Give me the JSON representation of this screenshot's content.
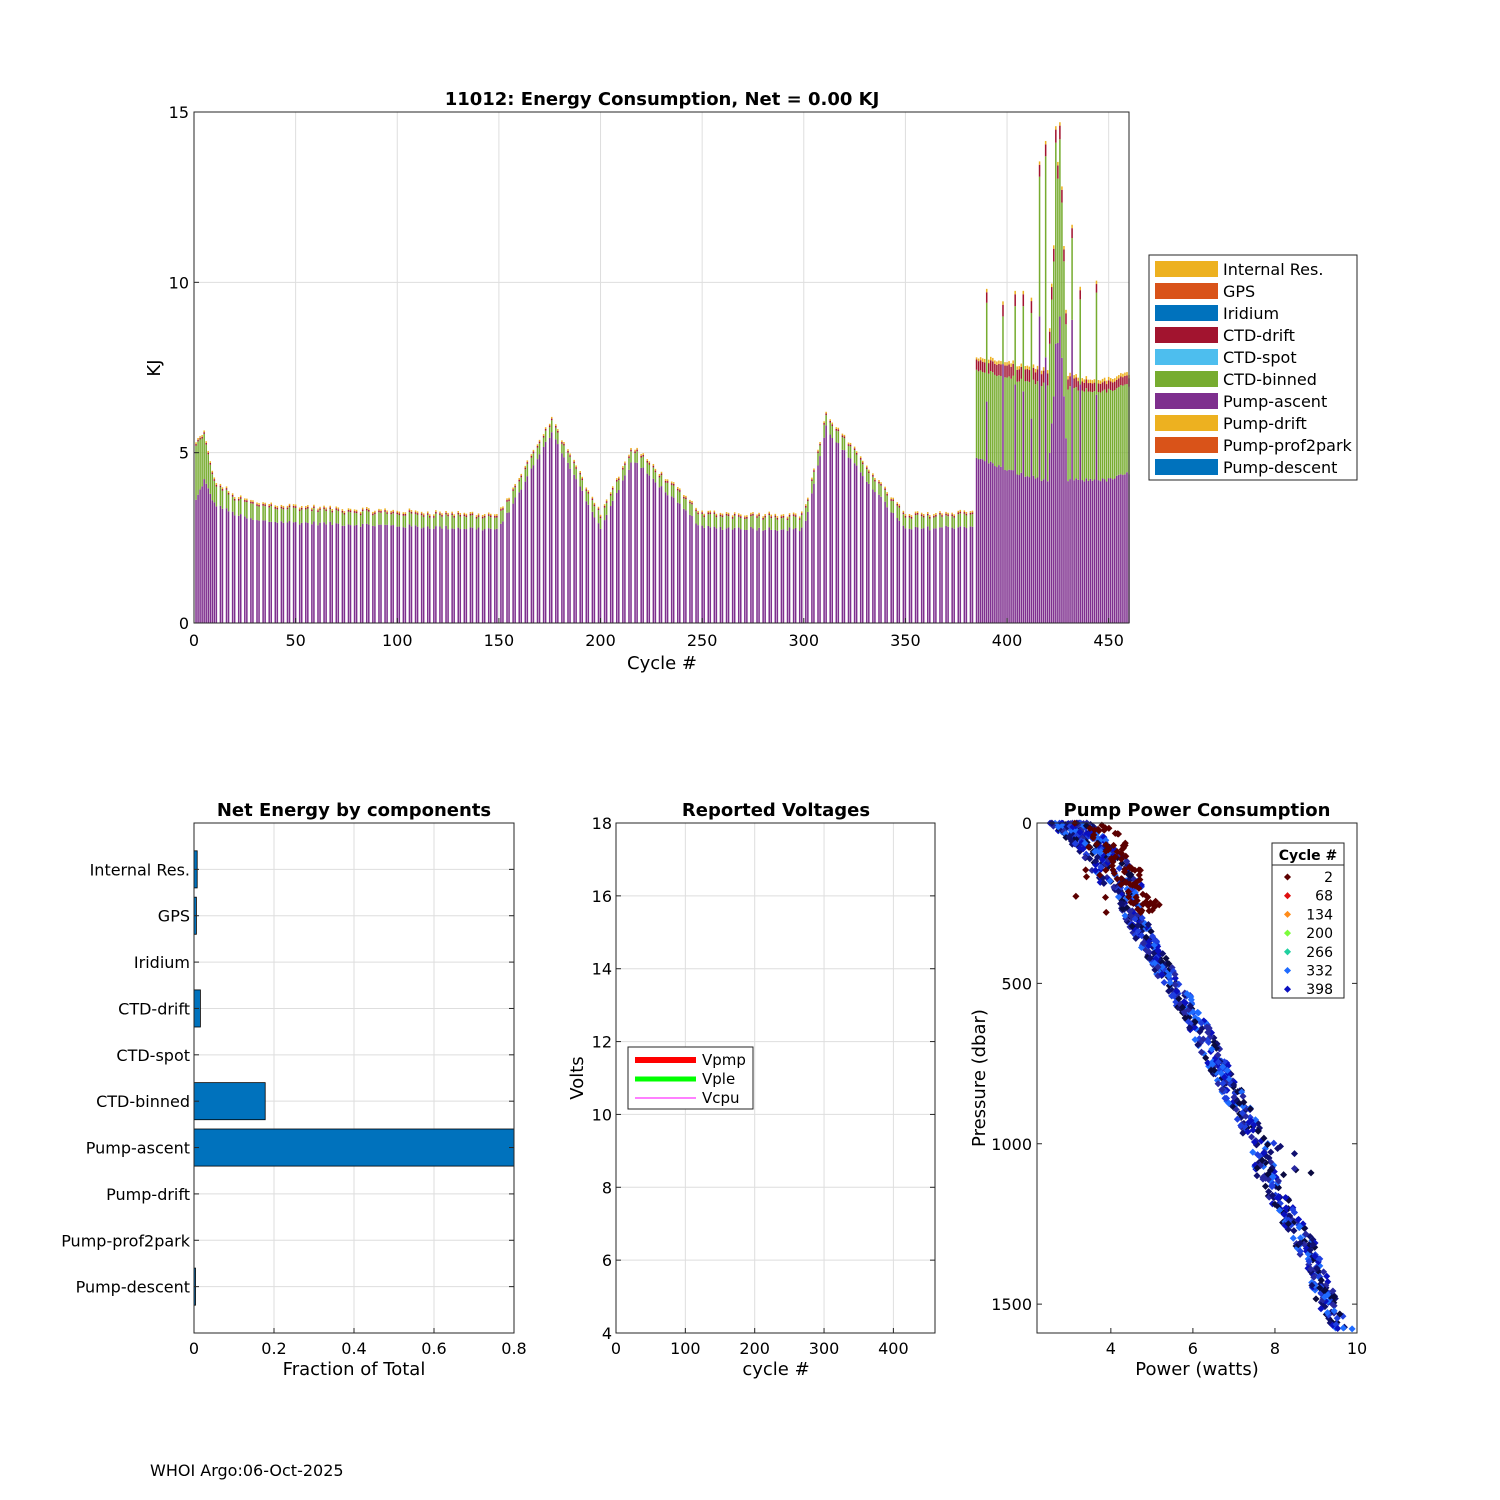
{
  "footer": "WHOI Argo:06-Oct-2025",
  "colors": {
    "internal_res": "#EDB120",
    "gps": "#D95319",
    "iridium": "#0072BD",
    "ctd_drift": "#A2142F",
    "ctd_spot": "#4DBEEE",
    "ctd_binned": "#77AC30",
    "pump_ascent": "#7E2F8E",
    "pump_drift": "#EDB120",
    "pump_prof2park": "#D95319",
    "pump_descent": "#0072BD",
    "net_bar": "#0072BD",
    "vpmp": "#FF0000",
    "vple": "#00FF00",
    "vcpu": "#FF00FF"
  },
  "chart_data": [
    {
      "type": "bar",
      "stacked": true,
      "title": "11012: Energy Consumption,  Net =   0.00 KJ",
      "xlabel": "Cycle #",
      "ylabel": "KJ",
      "xlim": [
        0,
        460
      ],
      "ylim": [
        0,
        15
      ],
      "xticks": [
        "0",
        "50",
        "100",
        "150",
        "200",
        "250",
        "300",
        "350",
        "400",
        "450"
      ],
      "yticks": [
        "0",
        "5",
        "10",
        "15"
      ],
      "grid": true,
      "legend_position": "outside-right",
      "legend": [
        "Internal Res.",
        "GPS",
        "Iridium",
        "CTD-drift",
        "CTD-spot",
        "CTD-binned",
        "Pump-ascent",
        "Pump-drift",
        "Pump-prof2park",
        "Pump-descent"
      ],
      "cycles_approx": {
        "x": [
          1,
          5,
          10,
          20,
          30,
          50,
          75,
          100,
          150,
          176,
          200,
          216,
          250,
          300,
          311,
          350,
          384,
          388,
          400,
          410,
          420,
          426,
          430,
          440,
          450,
          460
        ],
        "pump_ascent": [
          3.6,
          4.2,
          3.5,
          3.2,
          3.0,
          2.95,
          2.9,
          2.85,
          2.75,
          5.6,
          2.8,
          4.8,
          2.8,
          2.75,
          5.7,
          2.75,
          2.85,
          4.8,
          4.5,
          4.3,
          4.2,
          9.0,
          4.2,
          4.2,
          4.2,
          4.4
        ],
        "ctd_binned": [
          1.6,
          1.3,
          0.6,
          0.45,
          0.45,
          0.4,
          0.35,
          0.35,
          0.35,
          0.3,
          0.35,
          0.3,
          0.35,
          0.35,
          0.35,
          0.35,
          0.35,
          2.6,
          2.7,
          2.8,
          2.8,
          5.2,
          2.7,
          2.6,
          2.6,
          2.6
        ],
        "ctd_drift": [
          0.05,
          0.05,
          0.05,
          0.05,
          0.05,
          0.05,
          0.05,
          0.05,
          0.05,
          0.05,
          0.05,
          0.05,
          0.05,
          0.05,
          0.05,
          0.05,
          0.05,
          0.3,
          0.35,
          0.35,
          0.35,
          0.4,
          0.3,
          0.25,
          0.25,
          0.25
        ],
        "other": [
          0.05,
          0.05,
          0.05,
          0.05,
          0.05,
          0.05,
          0.05,
          0.05,
          0.05,
          0.05,
          0.05,
          0.05,
          0.05,
          0.05,
          0.05,
          0.05,
          0.05,
          0.1,
          0.1,
          0.1,
          0.1,
          0.1,
          0.1,
          0.1,
          0.1,
          0.1
        ]
      }
    },
    {
      "type": "bar",
      "orientation": "horizontal",
      "title": "Net Energy by components",
      "xlabel": "Fraction of Total",
      "xlim": [
        0,
        0.8
      ],
      "xticks": [
        "0",
        "0.2",
        "0.4",
        "0.6",
        "0.8"
      ],
      "grid": true,
      "categories": [
        "Internal Res.",
        "GPS",
        "Iridium",
        "CTD-drift",
        "CTD-spot",
        "CTD-binned",
        "Pump-ascent",
        "Pump-drift",
        "Pump-prof2park",
        "Pump-descent"
      ],
      "values": [
        0.008,
        0.006,
        0.0,
        0.016,
        0.0,
        0.178,
        0.8,
        0.0,
        0.0,
        0.002
      ]
    },
    {
      "type": "line",
      "title": "Reported Voltages",
      "xlabel": "cycle #",
      "ylabel": "Volts",
      "xlim": [
        0,
        460
      ],
      "ylim": [
        4,
        18
      ],
      "xticks": [
        "0",
        "100",
        "200",
        "300",
        "400"
      ],
      "yticks": [
        "4",
        "6",
        "8",
        "10",
        "12",
        "14",
        "16",
        "18"
      ],
      "grid": true,
      "legend_position": "middle-left",
      "series": [
        {
          "name": "Vpmp",
          "values": []
        },
        {
          "name": "Vple",
          "values": []
        },
        {
          "name": "Vcpu",
          "values": []
        }
      ]
    },
    {
      "type": "scatter",
      "title": "Pump Power Consumption",
      "xlabel": "Power (watts)",
      "ylabel": "Pressure (dbar)",
      "xlim": [
        2.2,
        10
      ],
      "ylim": [
        1590,
        0
      ],
      "y_reversed": true,
      "xticks": [
        "4",
        "6",
        "8",
        "10"
      ],
      "yticks": [
        "0",
        "500",
        "1000",
        "1500"
      ],
      "grid": false,
      "legend_title": "Cycle #",
      "legend_position": "top-right",
      "legend": [
        {
          "label": "2",
          "color": "#5C0000"
        },
        {
          "label": "68",
          "color": "#E01010"
        },
        {
          "label": "134",
          "color": "#FF8C1A"
        },
        {
          "label": "200",
          "color": "#7CFC3C"
        },
        {
          "label": "266",
          "color": "#20D0A0"
        },
        {
          "label": "332",
          "color": "#1F6BFF"
        },
        {
          "label": "398",
          "color": "#0A10C0"
        }
      ],
      "trend_approx": {
        "pressure": [
          0,
          100,
          200,
          300,
          400,
          500,
          600,
          700,
          800,
          900,
          1000,
          1100,
          1200,
          1300,
          1400,
          1500,
          1580
        ],
        "power": [
          3.0,
          3.8,
          4.3,
          4.6,
          5.0,
          5.5,
          6.0,
          6.4,
          6.8,
          7.2,
          7.6,
          7.8,
          8.2,
          8.7,
          9.0,
          9.3,
          9.7
        ]
      }
    }
  ]
}
